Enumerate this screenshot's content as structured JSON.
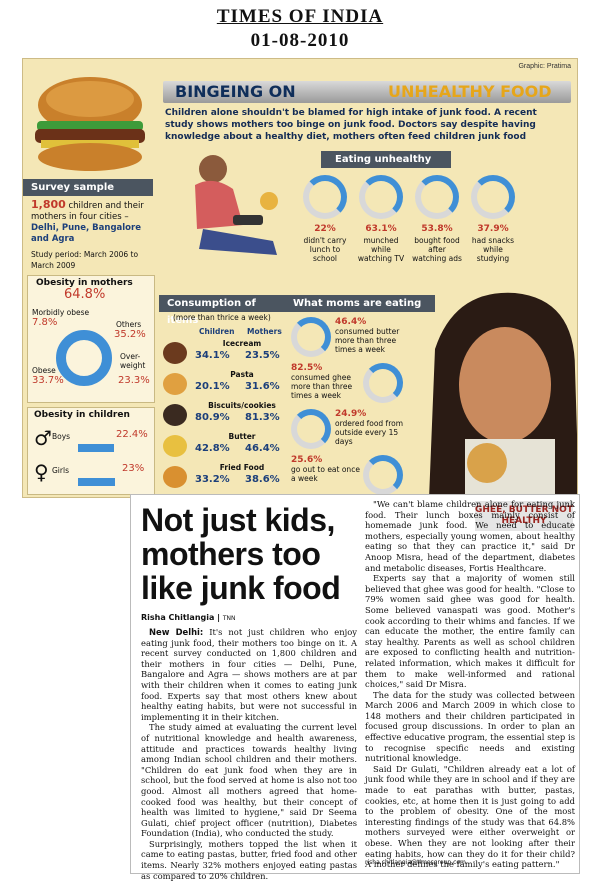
{
  "page_header": {
    "publication": "TIMES OF INDIA",
    "date": "01-08-2010"
  },
  "graphic": {
    "credit": "Graphic: Pratima",
    "title_part1": "BINGEING ON",
    "title_part2": "UNHEALTHY FOOD",
    "intro": "Children alone shouldn't be blamed for high intake of junk food. A recent study shows mothers too binge on junk food. Doctors say despite having knowledge about a healthy diet, mothers often feed children junk food",
    "survey": {
      "title": "Survey sample",
      "number": "1,800",
      "text": "children and their mothers in four cities –",
      "cities": "Delhi, Pune, Bangalore and Agra",
      "period": "Study period: March 2006 to March 2009"
    },
    "eating_unhealthy": {
      "title": "Eating unhealthy",
      "items": [
        {
          "pct": "22%",
          "label": "didn't carry lunch to school"
        },
        {
          "pct": "63.1%",
          "label": "munched while watching TV"
        },
        {
          "pct": "53.8%",
          "label": "bought food after watching ads"
        },
        {
          "pct": "37.9%",
          "label": "had snacks while studying"
        }
      ]
    },
    "obesity_mothers": {
      "title": "Obesity in mothers",
      "total": "64.8%",
      "morbidly_label": "Morbidly obese",
      "morbidly_pct": "7.8%",
      "others_label": "Others",
      "others_pct": "35.2%",
      "obese_label": "Obese",
      "obese_pct": "33.7%",
      "over_label": "Over-weight",
      "over_pct": "23.3%"
    },
    "obesity_children": {
      "title": "Obesity in children",
      "boys_label": "Boys",
      "boys_pct": "22.4%",
      "girls_label": "Girls",
      "girls_pct": "23%",
      "boys_value": 22.4,
      "girls_value": 23
    },
    "consumption": {
      "title": "Consumption of items",
      "subtitle": "(more than thrice a week)",
      "col1": "Children",
      "col2": "Mothers",
      "items": [
        {
          "name": "Icecream",
          "children": "34.1%",
          "mothers": "23.5%"
        },
        {
          "name": "Pasta",
          "children": "20.1%",
          "mothers": "31.6%"
        },
        {
          "name": "Biscuits/cookies",
          "children": "80.9%",
          "mothers": "81.3%"
        },
        {
          "name": "Butter",
          "children": "42.8%",
          "mothers": "46.4%"
        },
        {
          "name": "Fried Food",
          "children": "33.2%",
          "mothers": "38.6%"
        }
      ]
    },
    "moms_eating": {
      "title": "What moms are eating",
      "items": [
        {
          "pct": "46.4%",
          "label": "consumed butter more than three times a week"
        },
        {
          "pct": "82.5%",
          "label": "consumed ghee more than three times a week"
        },
        {
          "pct": "24.9%",
          "label": "ordered food from outside every 15 days"
        },
        {
          "pct": "25.6%",
          "label": "go out to eat once a week"
        }
      ]
    }
  },
  "article": {
    "headline": "Not just kids, mothers too like junk food",
    "byline": "Risha Chitlangia",
    "agency": "TNN",
    "dateline": "New Delhi:",
    "col1_p1": "It's not just children who enjoy eating junk food, their mothers too binge on it. A recent survey conducted on 1,800 children and their mothers in four cities — Delhi, Pune, Bangalore and Agra — shows mothers are at par with their children when it comes to eating junk food. Experts say that most others knew about healthy eating habits, but were not successful in implementing it in their kitchen.",
    "col1_p2": "The study aimed at evaluating the current level of nutritional knowledge and health awareness, attitude and practices towards healthy living among Indian school children and their mothers. \"Children do eat junk food when they are in school, but the food served at home is also not too good. Almost all mothers agreed that home-cooked food was healthy, but their concept of health was limited to hygiene,\" said Dr Seema Gulati, chief project officer (nutrition), Diabetes Foundation (India), who conducted the study.",
    "col1_p3": "Surprisingly, mothers topped the list when it came to eating pastas, butter, fried food and other items. Nearly 32% mothers enjoyed eating pastas as compared to 20% children.",
    "col2_p1": "\"We can't blame children alone for eating junk food. Their lunch boxes mainly consist of homemade junk food. We need to educate mothers, especially young women, about healthy eating so that they can practice it,\" said Dr Anoop Misra, head of the department, diabetes and metabolic diseases, Fortis Healthcare.",
    "col2_p2": "Experts say that a majority of women still believed that ghee was good for health. \"Close to 79% women said ghee was good for health. Some believed vanaspati was good. Mother's cook according to their whims and fancies. If we can educate the mother, the entire family can stay healthy. Parents as well as school children are exposed to conflicting health and nutrition-related information, which makes it difficult for them to make well-informed and rational choices,\" said Dr Misra.",
    "col2_p3": "The data for the study was collected between March 2006 and March 2009 in which close to 148 mothers and their children participated in focused group discussions. In order to plan an effective educative program, the essential step is to recognise specific needs and existing nutritional knowledge.",
    "col2_p4": "Said Dr Gulati, \"Children already eat a lot of junk food while they are in school and if they are made to eat parathas with butter, pastas, cookies, etc, at home then it is just going to add to the problem of obesity. One of the most interesting findings of the study was that 64.8% mothers surveyed were either overweight or obese. When they are not looking after their eating habits, how can they do it for their child? A mother defines the family's eating pattern.\"",
    "sidebar_heading": "GHEE, BUTTER NOT HEALTHY",
    "email": "risha.chitlangia@timesgroup.com"
  },
  "colors": {
    "accent": "#e6a61a",
    "navy": "#0f2e5a",
    "ring": "#3f8fd6",
    "pct": "#c0392b",
    "bg": "#f4e7b6"
  }
}
